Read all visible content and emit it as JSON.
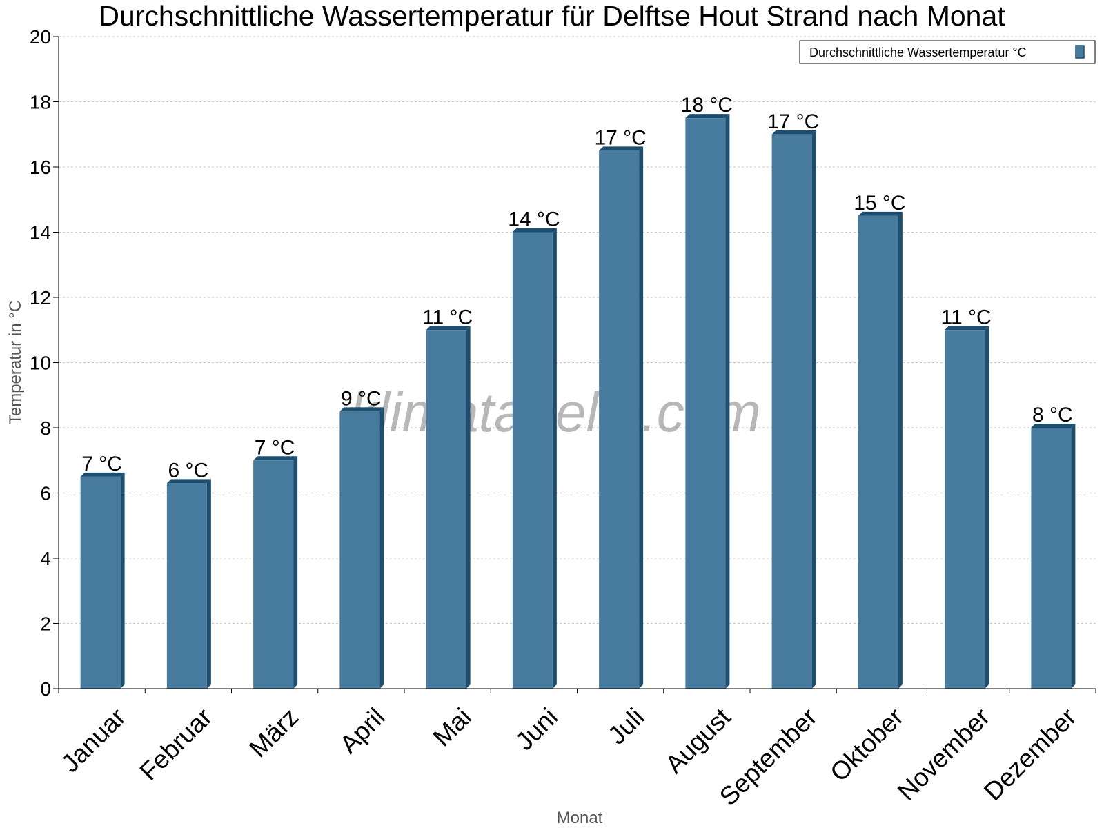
{
  "chart_data": {
    "type": "bar",
    "title": "Durchschnittliche Wassertemperatur für Delftse Hout Strand nach Monat",
    "xlabel": "Monat",
    "ylabel": "Temperatur in °C",
    "ylim": [
      0,
      20
    ],
    "yticks": [
      "0",
      "2",
      "4",
      "6",
      "8",
      "10",
      "12",
      "14",
      "16",
      "18",
      "20"
    ],
    "grid": true,
    "legend_position": "top-right",
    "categories": [
      "Januar",
      "Februar",
      "März",
      "April",
      "Mai",
      "Juni",
      "Juli",
      "August",
      "September",
      "Oktober",
      "November",
      "Dezember"
    ],
    "series": [
      {
        "name": "Durchschnittliche Wassertemperatur °C",
        "color": "#467b9e",
        "values": [
          6.5,
          6.3,
          7.0,
          8.5,
          11.0,
          14.0,
          16.5,
          17.5,
          17.0,
          14.5,
          11.0,
          8.0
        ],
        "labels": [
          "7 °C",
          "6 °C",
          "7 °C",
          "9 °C",
          "11 °C",
          "14 °C",
          "17 °C",
          "18 °C",
          "17 °C",
          "15 °C",
          "11 °C",
          "8 °C"
        ]
      }
    ],
    "watermark": "klimatabelle.com"
  }
}
